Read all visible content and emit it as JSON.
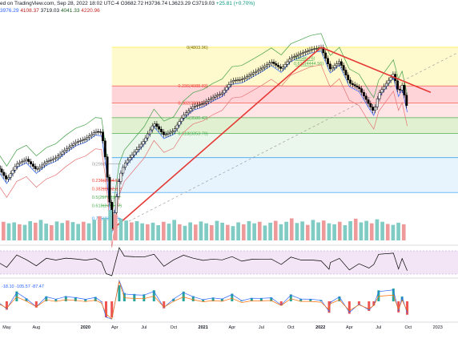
{
  "header": {
    "line1_prefix": "ed on TradingView.com, Sep 28, 2022 18:02 UTC-4",
    "ohlc": "O3682.72 H3736.74 L3623.29 C3719.03",
    "change": "+25.81 (+0.70%)",
    "ma_values": [
      "3976.29",
      "4108.37",
      "3719.03",
      "4041.33",
      "4220.96"
    ],
    "ma_colors": [
      "#2962ff",
      "#b71c1c",
      "#131722",
      "#1b5e20",
      "#c62828"
    ]
  },
  "chart_data": {
    "type": "candlestick",
    "x_axis": {
      "ticks": [
        {
          "label": "May",
          "date": "2019-05"
        },
        {
          "label": "Aug",
          "date": "2019-08"
        },
        {
          "label": "2020",
          "date": "2020-01",
          "bold": true
        },
        {
          "label": "Apr",
          "date": "2020-04"
        },
        {
          "label": "Jul",
          "date": "2020-07"
        },
        {
          "label": "Oct",
          "date": "2020-10"
        },
        {
          "label": "2021",
          "date": "2021-01",
          "bold": true
        },
        {
          "label": "Apr",
          "date": "2021-04"
        },
        {
          "label": "Jul",
          "date": "2021-07"
        },
        {
          "label": "Oct",
          "date": "2021-10"
        },
        {
          "label": "2022",
          "date": "2022-01",
          "bold": true
        },
        {
          "label": "Apr",
          "date": "2022-04"
        },
        {
          "label": "Jul",
          "date": "2022-07"
        },
        {
          "label": "Oct",
          "date": "2022-10"
        },
        {
          "label": "2023",
          "date": "2023-01"
        }
      ]
    },
    "price_path": [
      [
        "2019-04",
        2930
      ],
      [
        "2019-05",
        2760
      ],
      [
        "2019-06",
        2950
      ],
      [
        "2019-07",
        3010
      ],
      [
        "2019-08",
        2880
      ],
      [
        "2019-09",
        2980
      ],
      [
        "2019-10",
        3030
      ],
      [
        "2019-11",
        3140
      ],
      [
        "2019-12",
        3230
      ],
      [
        "2020-01",
        3280
      ],
      [
        "2020-02",
        3380
      ],
      [
        "2020-02-20",
        3370
      ],
      [
        "2020-03-05",
        2950
      ],
      [
        "2020-03-23",
        2240
      ],
      [
        "2020-04-15",
        2790
      ],
      [
        "2020-05",
        2950
      ],
      [
        "2020-06",
        3100
      ],
      [
        "2020-07",
        3250
      ],
      [
        "2020-08",
        3500
      ],
      [
        "2020-09",
        3330
      ],
      [
        "2020-10",
        3390
      ],
      [
        "2020-11",
        3620
      ],
      [
        "2020-12",
        3750
      ],
      [
        "2021-01",
        3800
      ],
      [
        "2021-02",
        3900
      ],
      [
        "2021-03",
        3970
      ],
      [
        "2021-04",
        4180
      ],
      [
        "2021-05",
        4200
      ],
      [
        "2021-06",
        4300
      ],
      [
        "2021-07",
        4400
      ],
      [
        "2021-08",
        4520
      ],
      [
        "2021-09",
        4390
      ],
      [
        "2021-10",
        4600
      ],
      [
        "2021-11",
        4680
      ],
      [
        "2021-12",
        4760
      ],
      [
        "2022-01-03",
        4800
      ],
      [
        "2022-01-28",
        4420
      ],
      [
        "2022-02",
        4380
      ],
      [
        "2022-03",
        4530
      ],
      [
        "2022-04",
        4140
      ],
      [
        "2022-05",
        4050
      ],
      [
        "2022-06",
        3780
      ],
      [
        "2022-06-16",
        3670
      ],
      [
        "2022-07",
        3950
      ],
      [
        "2022-08-16",
        4300
      ],
      [
        "2022-09-01",
        3970
      ],
      [
        "2022-09-12",
        4100
      ],
      [
        "2022-09-28",
        3719
      ]
    ],
    "fib_retracement_major": {
      "levels": [
        {
          "ratio": "0",
          "label": "0(4803.96)",
          "value": 4803.96,
          "color": "#ffeb3b"
        },
        {
          "ratio": "0.236",
          "label": "0.236(4088.83)",
          "value": 4088.83,
          "color": "#f44336"
        },
        {
          "ratio": "0.382",
          "label": "0.382(3808.06)",
          "value": 3808.06,
          "color": "#f44336"
        },
        {
          "ratio": "0.5",
          "label": "0.5(3580.43)",
          "value": 3580.43,
          "color": "#4caf50"
        },
        {
          "ratio": "0.618",
          "label": "0.618(3353.79)",
          "value": 3353.79,
          "color": "#4caf50"
        },
        {
          "ratio": "0.786",
          "label": "",
          "value": 3030,
          "color": "#2196f3"
        },
        {
          "ratio": "1",
          "label": "",
          "value": 2620,
          "color": "#2196f3"
        }
      ]
    },
    "fib_retracement_minor": {
      "levels": [
        {
          "label": "0(2950)",
          "value": 2950
        },
        {
          "label": "0.236(2754.52)",
          "value": 2754.52
        },
        {
          "label": "0.382(2662.61)",
          "value": 2662.61
        },
        {
          "label": "0.5(2571.11)",
          "value": 2571.11
        },
        {
          "label": "0.618(2480.27)",
          "value": 2480.27
        },
        {
          "label": "0.786(2350.7)",
          "value": 2350.7
        }
      ]
    },
    "fib_retracement_top": {
      "levels": [
        {
          "label": "0(4546.76)",
          "value": 4546.76
        },
        {
          "label": "0.618(4444.56)",
          "value": 4444.56
        }
      ]
    },
    "volume": [
      60,
      55,
      58,
      52,
      50,
      62,
      57,
      66,
      54,
      49,
      61,
      56,
      64,
      59,
      53,
      60,
      55,
      66,
      78,
      72,
      98,
      84,
      70,
      64,
      58,
      62,
      55,
      52,
      57,
      49,
      60,
      54,
      66,
      52,
      47,
      58,
      51,
      61,
      55,
      49,
      63,
      57,
      50,
      46,
      58,
      52,
      62,
      55,
      60,
      48,
      57,
      63,
      52,
      60,
      71,
      56,
      61,
      50,
      66,
      58,
      64,
      55,
      52,
      60,
      49,
      62,
      70,
      58,
      63,
      55,
      68,
      60,
      53,
      50,
      57,
      52
    ]
  }
}
